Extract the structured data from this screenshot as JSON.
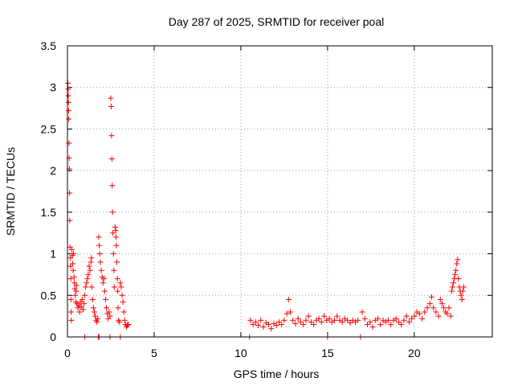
{
  "chart_data": {
    "type": "scatter",
    "title": "Day 287 of 2025, SRMTID for receiver poal",
    "xlabel": "GPS time / hours",
    "ylabel": "SRMTID / TECUs",
    "xlim": [
      0,
      24.5
    ],
    "ylim": [
      0,
      3.5
    ],
    "x_ticks": [
      0,
      5,
      10,
      15,
      20
    ],
    "x_tick_labels": [
      "0",
      "5",
      "10",
      "15",
      "20"
    ],
    "y_ticks": [
      0,
      0.5,
      1,
      1.5,
      2,
      2.5,
      3,
      3.5
    ],
    "y_tick_labels": [
      "0",
      "0.5",
      "1",
      "1.5",
      "2",
      "2.5",
      "3",
      "3.5"
    ],
    "grid": true,
    "marker": "+",
    "series": [
      {
        "name": "SRMTID",
        "color": "#ff0000",
        "points": [
          [
            0.02,
            3.05
          ],
          [
            0.04,
            2.98
          ],
          [
            0.05,
            2.9
          ],
          [
            0.06,
            2.82
          ],
          [
            0.07,
            2.72
          ],
          [
            0.08,
            2.62
          ],
          [
            0.09,
            2.33
          ],
          [
            0.1,
            2.15
          ],
          [
            0.11,
            2.02
          ],
          [
            0.12,
            1.73
          ],
          [
            0.13,
            1.4
          ],
          [
            0.15,
            1.08
          ],
          [
            0.17,
            0.95
          ],
          [
            0.18,
            0.85
          ],
          [
            0.19,
            0.7
          ],
          [
            0.2,
            0.45
          ],
          [
            0.21,
            0.3
          ],
          [
            0.22,
            0.2
          ],
          [
            0.25,
            1.05
          ],
          [
            0.28,
            0.98
          ],
          [
            0.3,
            0.88
          ],
          [
            0.33,
            0.8
          ],
          [
            0.35,
            1.0
          ],
          [
            0.38,
            0.72
          ],
          [
            0.4,
            0.65
          ],
          [
            0.42,
            0.58
          ],
          [
            0.45,
            0.5
          ],
          [
            0.48,
            0.42
          ],
          [
            0.5,
            0.55
          ],
          [
            0.52,
            0.62
          ],
          [
            0.55,
            0.4
          ],
          [
            0.6,
            0.35
          ],
          [
            0.65,
            0.38
          ],
          [
            0.7,
            0.3
          ],
          [
            0.75,
            0.42
          ],
          [
            0.8,
            0.36
          ],
          [
            0.85,
            0.45
          ],
          [
            0.9,
            0.33
          ],
          [
            0.95,
            0.4
          ],
          [
            1.0,
            0.5
          ],
          [
            1.05,
            0.6
          ],
          [
            1.1,
            0.65
          ],
          [
            1.15,
            0.7
          ],
          [
            1.2,
            0.75
          ],
          [
            1.25,
            0.85
          ],
          [
            1.3,
            0.8
          ],
          [
            1.35,
            0.9
          ],
          [
            1.38,
            0.95
          ],
          [
            1.4,
            0.6
          ],
          [
            1.45,
            0.45
          ],
          [
            1.5,
            0.35
          ],
          [
            1.55,
            0.3
          ],
          [
            1.6,
            0.25
          ],
          [
            1.65,
            0.2
          ],
          [
            1.7,
            0.18
          ],
          [
            1.75,
            0.22
          ],
          [
            1.78,
            0.0
          ],
          [
            1.8,
            1.2
          ],
          [
            1.83,
            1.1
          ],
          [
            1.86,
            1.0
          ],
          [
            1.9,
            0.9
          ],
          [
            1.95,
            0.8
          ],
          [
            2.0,
            0.72
          ],
          [
            2.05,
            0.65
          ],
          [
            2.1,
            0.7
          ],
          [
            2.15,
            0.55
          ],
          [
            2.2,
            0.45
          ],
          [
            2.25,
            0.35
          ],
          [
            2.3,
            0.28
          ],
          [
            2.35,
            0.22
          ],
          [
            2.4,
            0.3
          ],
          [
            2.45,
            0.25
          ],
          [
            2.5,
            2.87
          ],
          [
            2.52,
            2.77
          ],
          [
            2.54,
            2.42
          ],
          [
            2.56,
            2.14
          ],
          [
            2.58,
            1.82
          ],
          [
            2.6,
            1.5
          ],
          [
            2.62,
            1.25
          ],
          [
            2.65,
            1.0
          ],
          [
            2.68,
            0.8
          ],
          [
            2.7,
            0.6
          ],
          [
            2.75,
            1.32
          ],
          [
            2.78,
            1.28
          ],
          [
            2.8,
            1.2
          ],
          [
            2.82,
            1.1
          ],
          [
            2.85,
            0.9
          ],
          [
            2.88,
            0.7
          ],
          [
            2.9,
            0.55
          ],
          [
            2.92,
            0.35
          ],
          [
            2.95,
            0.2
          ],
          [
            3.0,
            0.18
          ],
          [
            3.05,
            0.0
          ],
          [
            3.05,
            0.65
          ],
          [
            3.1,
            0.6
          ],
          [
            3.15,
            0.5
          ],
          [
            3.2,
            0.42
          ],
          [
            3.25,
            0.3
          ],
          [
            3.3,
            0.2
          ],
          [
            3.35,
            0.15
          ],
          [
            3.4,
            0.12
          ],
          [
            3.45,
            0.14
          ],
          [
            3.5,
            0.15
          ],
          [
            1.0,
            0.0
          ],
          [
            1.82,
            0.0
          ],
          [
            2.45,
            0.0
          ],
          [
            10.5,
            0.0
          ],
          [
            10.55,
            0.2
          ],
          [
            10.7,
            0.15
          ],
          [
            10.85,
            0.18
          ],
          [
            11.0,
            0.14
          ],
          [
            11.15,
            0.2
          ],
          [
            11.3,
            0.12
          ],
          [
            11.45,
            0.17
          ],
          [
            11.6,
            0.15
          ],
          [
            11.75,
            0.1
          ],
          [
            11.9,
            0.16
          ],
          [
            12.05,
            0.14
          ],
          [
            12.2,
            0.18
          ],
          [
            12.35,
            0.15
          ],
          [
            12.5,
            0.2
          ],
          [
            12.65,
            0.28
          ],
          [
            12.75,
            0.45
          ],
          [
            12.85,
            0.3
          ],
          [
            13.0,
            0.2
          ],
          [
            13.15,
            0.16
          ],
          [
            13.3,
            0.22
          ],
          [
            13.45,
            0.18
          ],
          [
            13.6,
            0.15
          ],
          [
            13.75,
            0.2
          ],
          [
            13.9,
            0.25
          ],
          [
            14.05,
            0.18
          ],
          [
            14.2,
            0.15
          ],
          [
            14.35,
            0.2
          ],
          [
            14.5,
            0.22
          ],
          [
            14.65,
            0.18
          ],
          [
            14.8,
            0.25
          ],
          [
            14.95,
            0.2
          ],
          [
            15.0,
            0.0
          ],
          [
            15.1,
            0.22
          ],
          [
            15.25,
            0.18
          ],
          [
            15.4,
            0.2
          ],
          [
            15.55,
            0.25
          ],
          [
            15.7,
            0.2
          ],
          [
            15.85,
            0.18
          ],
          [
            16.0,
            0.22
          ],
          [
            16.15,
            0.2
          ],
          [
            16.3,
            0.17
          ],
          [
            16.45,
            0.2
          ],
          [
            16.6,
            0.18
          ],
          [
            16.75,
            0.2
          ],
          [
            16.9,
            0.0
          ],
          [
            17.0,
            0.3
          ],
          [
            17.15,
            0.22
          ],
          [
            17.3,
            0.15
          ],
          [
            17.45,
            0.18
          ],
          [
            17.6,
            0.12
          ],
          [
            17.75,
            0.2
          ],
          [
            17.9,
            0.22
          ],
          [
            18.05,
            0.15
          ],
          [
            18.2,
            0.2
          ],
          [
            18.35,
            0.18
          ],
          [
            18.5,
            0.2
          ],
          [
            18.65,
            0.15
          ],
          [
            18.8,
            0.2
          ],
          [
            18.95,
            0.22
          ],
          [
            19.1,
            0.18
          ],
          [
            19.25,
            0.15
          ],
          [
            19.4,
            0.2
          ],
          [
            19.55,
            0.25
          ],
          [
            19.7,
            0.18
          ],
          [
            19.85,
            0.22
          ],
          [
            20.0,
            0.25
          ],
          [
            20.15,
            0.3
          ],
          [
            20.3,
            0.28
          ],
          [
            20.45,
            0.22
          ],
          [
            20.6,
            0.3
          ],
          [
            20.75,
            0.35
          ],
          [
            20.9,
            0.4
          ],
          [
            21.0,
            0.48
          ],
          [
            21.1,
            0.35
          ],
          [
            21.25,
            0.3
          ],
          [
            21.4,
            0.25
          ],
          [
            21.5,
            0.45
          ],
          [
            21.6,
            0.4
          ],
          [
            21.7,
            0.35
          ],
          [
            21.8,
            0.3
          ],
          [
            21.9,
            0.28
          ],
          [
            22.0,
            0.35
          ],
          [
            22.1,
            0.25
          ],
          [
            22.15,
            0.55
          ],
          [
            22.2,
            0.6
          ],
          [
            22.25,
            0.65
          ],
          [
            22.3,
            0.7
          ],
          [
            22.35,
            0.75
          ],
          [
            22.4,
            0.8
          ],
          [
            22.45,
            0.88
          ],
          [
            22.5,
            0.93
          ],
          [
            22.55,
            0.7
          ],
          [
            22.6,
            0.6
          ],
          [
            22.65,
            0.55
          ],
          [
            22.7,
            0.5
          ],
          [
            22.75,
            0.45
          ],
          [
            22.8,
            0.55
          ],
          [
            22.85,
            0.6
          ]
        ]
      }
    ]
  }
}
